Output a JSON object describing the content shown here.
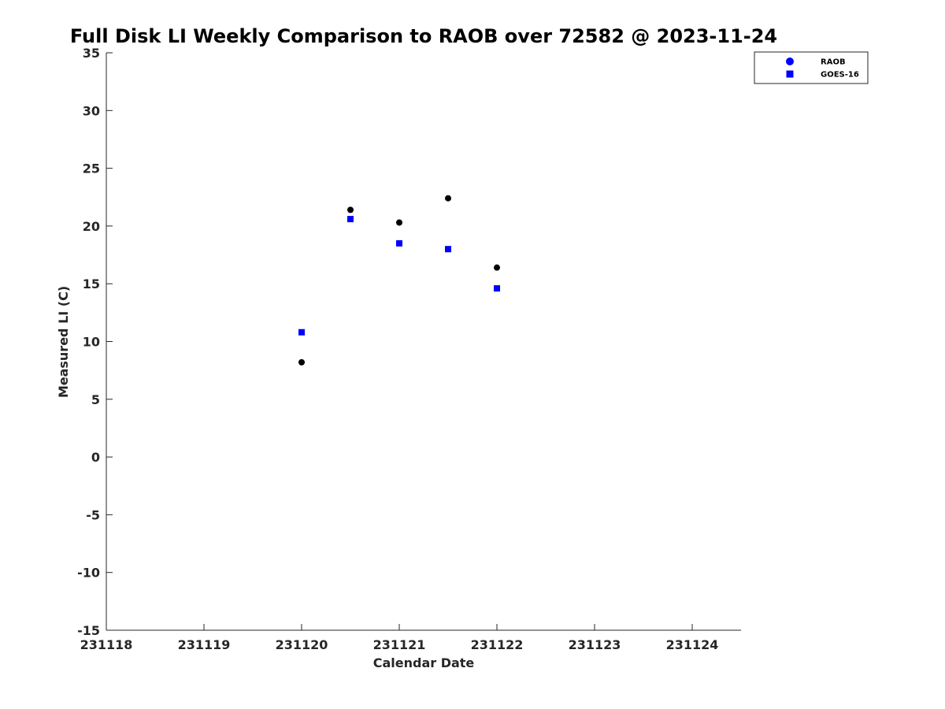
{
  "chart_data": {
    "type": "scatter",
    "title": "Full Disk LI Weekly Comparison to RAOB over 72582 @ 2023-11-24",
    "xlabel": "Calendar Date",
    "ylabel": "Measured LI (C)",
    "xlim": [
      0,
      6.5
    ],
    "ylim": [
      -15,
      35
    ],
    "x_ticks": [
      0,
      1,
      2,
      3,
      4,
      5,
      6
    ],
    "x_tick_labels": [
      "231118",
      "231119",
      "231120",
      "231121",
      "231122",
      "231123",
      "231124"
    ],
    "y_ticks": [
      -15,
      -10,
      -5,
      0,
      5,
      10,
      15,
      20,
      25,
      30,
      35
    ],
    "y_tick_labels": [
      "-15",
      "-10",
      "-5",
      "0",
      "5",
      "10",
      "15",
      "20",
      "25",
      "30",
      "35"
    ],
    "grid": false,
    "legend_position": "top-right",
    "series": [
      {
        "name": "RAOB",
        "marker": "circle",
        "color": "#000000",
        "legend_color": "#0000ff",
        "x": [
          2.0,
          2.5,
          3.0,
          3.5,
          4.0
        ],
        "y": [
          8.2,
          21.4,
          20.3,
          22.4,
          16.4
        ]
      },
      {
        "name": "GOES-16",
        "marker": "square",
        "color": "#0000ff",
        "legend_color": "#0000ff",
        "x": [
          2.0,
          2.5,
          3.0,
          3.5,
          4.0
        ],
        "y": [
          10.8,
          20.6,
          18.5,
          18.0,
          14.6
        ]
      }
    ]
  }
}
